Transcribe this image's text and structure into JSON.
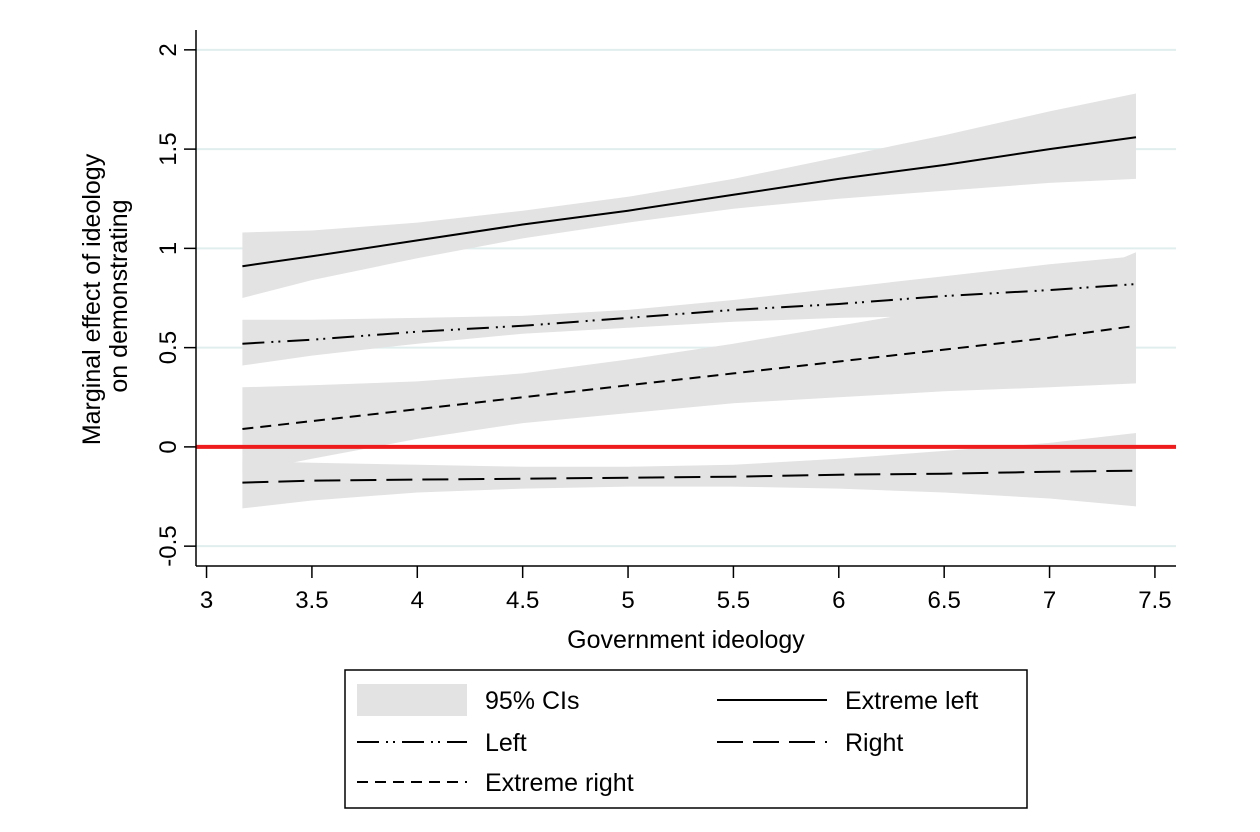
{
  "chart_data": {
    "type": "line",
    "xlabel": "Government ideology",
    "ylabel": [
      "Marginal effect of ideology",
      "on demonstrating"
    ],
    "xlim": [
      2.95,
      7.6
    ],
    "ylim": [
      -0.6,
      2.1
    ],
    "x_ticks": [
      3,
      3.5,
      4,
      4.5,
      5,
      5.5,
      6,
      6.5,
      7,
      7.5
    ],
    "x_tick_labels": [
      "3",
      "3.5",
      "4",
      "4.5",
      "5",
      "5.5",
      "6",
      "6.5",
      "7",
      "7.5"
    ],
    "y_ticks": [
      -0.5,
      0,
      0.5,
      1,
      1.5,
      2
    ],
    "y_tick_labels": [
      "-0.5",
      "0",
      "0.5",
      "1",
      "1.5",
      "2"
    ],
    "grid": true,
    "reference_line": {
      "y": 0,
      "color": "#ee1c1c"
    },
    "ci_color": "#e3e3e3",
    "gridline_color": "#e0eeee",
    "series": [
      {
        "name": "Extreme left",
        "dash": "solid",
        "x": [
          3.17,
          3.5,
          4.0,
          4.5,
          5.0,
          5.5,
          6.0,
          6.5,
          7.0,
          7.41
        ],
        "y": [
          0.91,
          0.96,
          1.04,
          1.12,
          1.19,
          1.27,
          1.35,
          1.42,
          1.5,
          1.56
        ],
        "ci_lower": [
          0.75,
          0.84,
          0.95,
          1.05,
          1.13,
          1.2,
          1.25,
          1.29,
          1.33,
          1.35
        ],
        "ci_upper": [
          1.08,
          1.09,
          1.13,
          1.19,
          1.26,
          1.35,
          1.46,
          1.57,
          1.69,
          1.78
        ]
      },
      {
        "name": "Left",
        "dash": "longdashdotdot",
        "x": [
          3.17,
          3.5,
          4.0,
          4.5,
          5.0,
          5.5,
          6.0,
          6.5,
          7.0,
          7.41
        ],
        "y": [
          0.52,
          0.54,
          0.58,
          0.61,
          0.65,
          0.69,
          0.72,
          0.76,
          0.79,
          0.82
        ],
        "ci_lower": [
          0.41,
          0.46,
          0.52,
          0.57,
          0.6,
          0.63,
          0.65,
          0.66,
          0.67,
          0.68
        ],
        "ci_upper": [
          0.64,
          0.64,
          0.65,
          0.66,
          0.69,
          0.74,
          0.8,
          0.86,
          0.92,
          0.96
        ]
      },
      {
        "name": "Extreme right",
        "dash": "shortdash",
        "x": [
          3.17,
          3.5,
          4.0,
          4.5,
          5.0,
          5.5,
          6.0,
          6.5,
          7.0,
          7.41
        ],
        "y": [
          0.09,
          0.13,
          0.19,
          0.25,
          0.31,
          0.37,
          0.43,
          0.49,
          0.55,
          0.61
        ],
        "ci_lower": [
          -0.13,
          -0.06,
          0.04,
          0.12,
          0.17,
          0.22,
          0.25,
          0.28,
          0.3,
          0.32
        ],
        "ci_upper": [
          0.3,
          0.31,
          0.33,
          0.37,
          0.44,
          0.52,
          0.61,
          0.7,
          0.8,
          0.98
        ]
      },
      {
        "name": "Right",
        "dash": "longdash",
        "x": [
          3.17,
          3.5,
          4.0,
          4.5,
          5.0,
          5.5,
          6.0,
          6.5,
          7.0,
          7.41
        ],
        "y": [
          -0.18,
          -0.17,
          -0.165,
          -0.16,
          -0.155,
          -0.15,
          -0.14,
          -0.135,
          -0.125,
          -0.12
        ],
        "ci_lower": [
          -0.31,
          -0.27,
          -0.23,
          -0.21,
          -0.2,
          -0.2,
          -0.21,
          -0.23,
          -0.26,
          -0.3
        ],
        "ci_upper": [
          -0.07,
          -0.08,
          -0.09,
          -0.1,
          -0.1,
          -0.09,
          -0.06,
          -0.02,
          0.02,
          0.07
        ]
      }
    ],
    "legend": {
      "placement": "bottom",
      "items": [
        {
          "label": "95% CIs",
          "kind": "ci"
        },
        {
          "label": "Extreme left",
          "kind": "solid"
        },
        {
          "label": "Left",
          "kind": "longdashdotdot"
        },
        {
          "label": "Right",
          "kind": "longdash"
        },
        {
          "label": "Extreme right",
          "kind": "shortdash"
        }
      ]
    }
  }
}
